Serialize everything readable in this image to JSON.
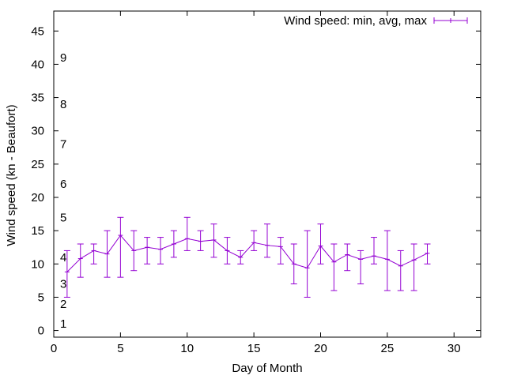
{
  "chart_data": {
    "type": "line",
    "xlabel": "Day of Month",
    "ylabel": "Wind speed (kn - Beaufort)",
    "xlim": [
      0,
      32
    ],
    "ylim": [
      -1,
      48
    ],
    "x_ticks": [
      "0",
      "5",
      "10",
      "15",
      "20",
      "25",
      "30"
    ],
    "y_ticks": [
      "0",
      "5",
      "10",
      "15",
      "20",
      "25",
      "30",
      "35",
      "40",
      "45"
    ],
    "grid": false,
    "legend_position": "top-right",
    "beaufort_labels": [
      {
        "label": "1",
        "y": 1
      },
      {
        "label": "2",
        "y": 4
      },
      {
        "label": "3",
        "y": 7
      },
      {
        "label": "4",
        "y": 11
      },
      {
        "label": "5",
        "y": 17
      },
      {
        "label": "6",
        "y": 22
      },
      {
        "label": "7",
        "y": 28
      },
      {
        "label": "8",
        "y": 34
      },
      {
        "label": "9",
        "y": 41
      }
    ],
    "series": [
      {
        "name": "Wind speed: min, avg, max",
        "color": "#9400d3",
        "x": [
          1,
          2,
          3,
          4,
          5,
          6,
          7,
          8,
          9,
          10,
          11,
          12,
          13,
          14,
          15,
          16,
          17,
          18,
          19,
          20,
          21,
          22,
          23,
          24,
          25,
          26,
          27,
          28
        ],
        "avg": [
          8.8,
          10.8,
          12.0,
          11.5,
          14.3,
          12.0,
          12.5,
          12.2,
          13.0,
          13.8,
          13.4,
          13.6,
          12.0,
          11.0,
          13.2,
          12.8,
          12.6,
          10.0,
          9.4,
          12.7,
          10.3,
          11.4,
          10.7,
          11.2,
          10.7,
          9.7,
          10.6,
          11.6
        ],
        "min": [
          5,
          8,
          10,
          8,
          8,
          9,
          10,
          10,
          11,
          12,
          12,
          11,
          10,
          10,
          12,
          11,
          10,
          7,
          5,
          10,
          6,
          9,
          7,
          10,
          6,
          6,
          6,
          10
        ],
        "max": [
          12,
          13,
          13,
          15,
          17,
          15,
          14,
          14,
          15,
          17,
          15,
          16,
          14,
          12,
          15,
          16,
          14,
          13,
          15,
          16,
          13,
          13,
          12,
          14,
          15,
          12,
          13,
          13
        ]
      }
    ]
  }
}
